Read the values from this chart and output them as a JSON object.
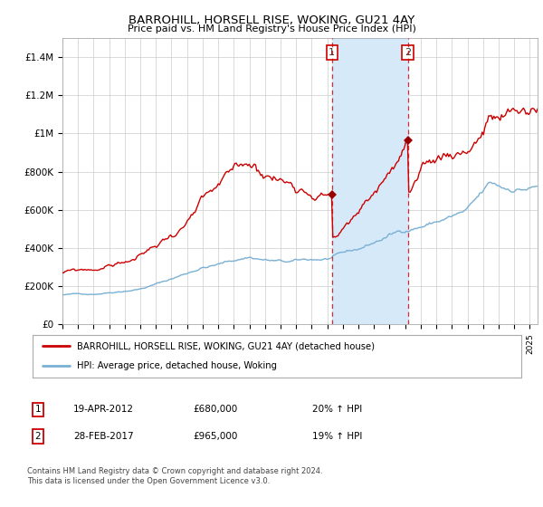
{
  "title": "BARROHILL, HORSELL RISE, WOKING, GU21 4AY",
  "subtitle": "Price paid vs. HM Land Registry's House Price Index (HPI)",
  "xlim_start": 1995.0,
  "xlim_end": 2025.5,
  "ylim": [
    0,
    1500000
  ],
  "yticks": [
    0,
    200000,
    400000,
    600000,
    800000,
    1000000,
    1200000,
    1400000
  ],
  "ytick_labels": [
    "£0",
    "£200K",
    "£400K",
    "£600K",
    "£800K",
    "£1M",
    "£1.2M",
    "£1.4M"
  ],
  "sale1_x": 2012.3,
  "sale1_y": 680000,
  "sale1_label": "1",
  "sale2_x": 2017.17,
  "sale2_y": 965000,
  "sale2_label": "2",
  "shaded_xmin": 2012.3,
  "shaded_xmax": 2017.17,
  "line1_color": "#cc0000",
  "line2_color": "#7ab0d4",
  "shade_color": "#d6e9f8",
  "vline_color": "#cc0000",
  "marker_color": "#990000",
  "legend_line1": "BARROHILL, HORSELL RISE, WOKING, GU21 4AY (detached house)",
  "legend_line2": "HPI: Average price, detached house, Woking",
  "table_row1": [
    "1",
    "19-APR-2012",
    "£680,000",
    "20% ↑ HPI"
  ],
  "table_row2": [
    "2",
    "28-FEB-2017",
    "£965,000",
    "19% ↑ HPI"
  ],
  "footer": "Contains HM Land Registry data © Crown copyright and database right 2024.\nThis data is licensed under the Open Government Licence v3.0.",
  "background_color": "#ffffff"
}
